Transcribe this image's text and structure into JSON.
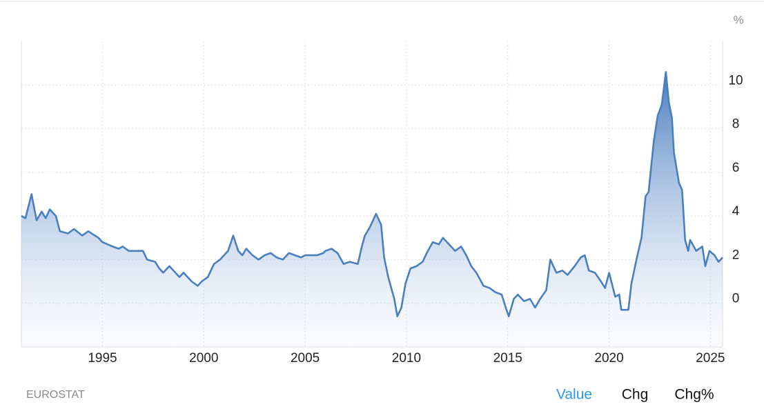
{
  "chart_data": {
    "type": "line",
    "y_label": "%",
    "x": [
      1991.0,
      1991.2,
      1991.5,
      1991.75,
      1992.0,
      1992.2,
      1992.4,
      1992.7,
      1992.9,
      1993.3,
      1993.6,
      1994.0,
      1994.3,
      1994.8,
      1995.0,
      1995.5,
      1995.8,
      1996.0,
      1996.3,
      1996.6,
      1997.0,
      1997.2,
      1997.6,
      1997.8,
      1998.0,
      1998.3,
      1998.6,
      1998.8,
      1999.0,
      1999.4,
      1999.7,
      1999.9,
      2000.2,
      2000.5,
      2000.8,
      2001.0,
      2001.2,
      2001.45,
      2001.7,
      2001.9,
      2002.1,
      2002.4,
      2002.7,
      2003.0,
      2003.3,
      2003.6,
      2003.9,
      2004.2,
      2004.5,
      2004.8,
      2005.0,
      2005.3,
      2005.6,
      2005.9,
      2006.0,
      2006.3,
      2006.6,
      2006.9,
      2007.2,
      2007.6,
      2007.8,
      2007.95,
      2008.2,
      2008.5,
      2008.75,
      2008.9,
      2009.1,
      2009.4,
      2009.55,
      2009.75,
      2009.95,
      2010.2,
      2010.5,
      2010.8,
      2011.0,
      2011.3,
      2011.6,
      2011.8,
      2012.1,
      2012.4,
      2012.7,
      2012.95,
      2013.2,
      2013.45,
      2013.8,
      2014.1,
      2014.4,
      2014.7,
      2014.9,
      2015.05,
      2015.3,
      2015.5,
      2015.8,
      2016.1,
      2016.35,
      2016.6,
      2016.9,
      2017.1,
      2017.4,
      2017.7,
      2017.95,
      2018.3,
      2018.6,
      2018.8,
      2019.0,
      2019.3,
      2019.6,
      2019.8,
      2020.0,
      2020.3,
      2020.5,
      2020.6,
      2020.95,
      2021.1,
      2021.35,
      2021.6,
      2021.8,
      2021.95,
      2022.2,
      2022.4,
      2022.6,
      2022.8,
      2022.95,
      2023.1,
      2023.2,
      2023.45,
      2023.6,
      2023.75,
      2023.9,
      2024.0,
      2024.3,
      2024.6,
      2024.75,
      2024.95,
      2025.2,
      2025.4,
      2025.6
    ],
    "series": [
      {
        "name": "Value",
        "color": "#4a7fbd",
        "values": [
          4.0,
          3.9,
          5.0,
          3.8,
          4.2,
          3.9,
          4.3,
          4.0,
          3.3,
          3.2,
          3.4,
          3.1,
          3.3,
          3.0,
          2.8,
          2.6,
          2.5,
          2.6,
          2.4,
          2.4,
          2.4,
          2.0,
          1.9,
          1.6,
          1.4,
          1.7,
          1.4,
          1.2,
          1.4,
          1.0,
          0.8,
          1.0,
          1.2,
          1.8,
          2.0,
          2.2,
          2.4,
          3.1,
          2.4,
          2.2,
          2.5,
          2.2,
          2.0,
          2.2,
          2.3,
          2.1,
          2.0,
          2.3,
          2.2,
          2.1,
          2.2,
          2.2,
          2.2,
          2.3,
          2.4,
          2.5,
          2.3,
          1.8,
          1.9,
          1.8,
          2.6,
          3.1,
          3.5,
          4.1,
          3.6,
          2.1,
          1.2,
          0.2,
          -0.6,
          -0.2,
          0.9,
          1.6,
          1.7,
          1.9,
          2.3,
          2.8,
          2.7,
          3.0,
          2.7,
          2.4,
          2.6,
          2.2,
          1.7,
          1.4,
          0.8,
          0.7,
          0.5,
          0.4,
          -0.2,
          -0.6,
          0.2,
          0.4,
          0.1,
          0.2,
          -0.2,
          0.2,
          0.6,
          2.0,
          1.4,
          1.5,
          1.3,
          1.7,
          2.1,
          2.2,
          1.5,
          1.4,
          1.0,
          0.7,
          1.4,
          0.3,
          0.4,
          -0.3,
          -0.3,
          0.9,
          2.0,
          3.0,
          4.9,
          5.1,
          7.4,
          8.6,
          9.1,
          10.6,
          9.2,
          8.5,
          6.9,
          5.5,
          5.2,
          2.9,
          2.4,
          2.9,
          2.4,
          2.6,
          1.7,
          2.4,
          2.2,
          1.9,
          2.1
        ]
      }
    ],
    "xlim": [
      1991,
      2025.6
    ],
    "xticks": [
      1995,
      2000,
      2005,
      2010,
      2015,
      2020,
      2025
    ],
    "ylim": [
      -2,
      12
    ],
    "yticks": [
      0,
      2,
      4,
      6,
      8,
      10
    ],
    "grid": true
  },
  "source": "EUROSTAT",
  "tabs": [
    "Value",
    "Chg",
    "Chg%"
  ]
}
